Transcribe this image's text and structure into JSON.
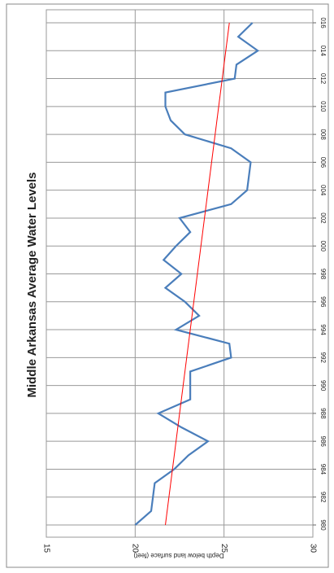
{
  "chart_data": {
    "type": "line",
    "title": "Middle Arkansas Average Water Levels",
    "y_label": "Depth below land surface (feet)",
    "x": [
      1980,
      1981,
      1982,
      1983,
      1984,
      1985,
      1986,
      1987,
      1988,
      1989,
      1990,
      1991,
      1992,
      1993,
      1994,
      1995,
      1996,
      1997,
      1998,
      1999,
      2000,
      2001,
      2002,
      2003,
      2004,
      2005,
      2006,
      2007,
      2008,
      2009,
      2010,
      2011,
      2012,
      2013,
      2014,
      2015,
      2016
    ],
    "series": [
      {
        "color": "#4a7ebb",
        "values": [
          20.0,
          20.9,
          21.0,
          21.1,
          22.2,
          23.0,
          24.1,
          22.6,
          21.3,
          23.1,
          23.1,
          23.1,
          25.4,
          25.3,
          22.3,
          23.6,
          22.8,
          21.7,
          22.6,
          21.6,
          22.3,
          23.1,
          22.5,
          25.4,
          26.3,
          26.4,
          26.5,
          25.4,
          22.8,
          22.0,
          21.7,
          21.7,
          25.6,
          25.7,
          26.9,
          25.8,
          26.6
        ]
      },
      {
        "color": "#ff0000",
        "x": [
          1980,
          2016
        ],
        "values": [
          21.7,
          25.3
        ]
      }
    ],
    "xlim": [
      1980,
      2016
    ],
    "xticks": [
      {
        "value": 1980,
        "label": "980"
      },
      {
        "value": 1982,
        "label": "982"
      },
      {
        "value": 1984,
        "label": "984"
      },
      {
        "value": 1986,
        "label": "986"
      },
      {
        "value": 1988,
        "label": "988"
      },
      {
        "value": 1990,
        "label": "990"
      },
      {
        "value": 1992,
        "label": "992"
      },
      {
        "value": 1994,
        "label": "994"
      },
      {
        "value": 1996,
        "label": "996"
      },
      {
        "value": 1998,
        "label": "998"
      },
      {
        "value": 2000,
        "label": "000"
      },
      {
        "value": 2002,
        "label": "002"
      },
      {
        "value": 2004,
        "label": "004"
      },
      {
        "value": 2006,
        "label": "006"
      },
      {
        "value": 2008,
        "label": "008"
      },
      {
        "value": 2010,
        "label": "010"
      },
      {
        "value": 2012,
        "label": "012"
      },
      {
        "value": 2014,
        "label": "014"
      },
      {
        "value": 2016,
        "label": "016"
      }
    ],
    "ylim": [
      15,
      30
    ],
    "yticks": [
      15,
      20,
      25,
      30
    ],
    "grid": true
  }
}
